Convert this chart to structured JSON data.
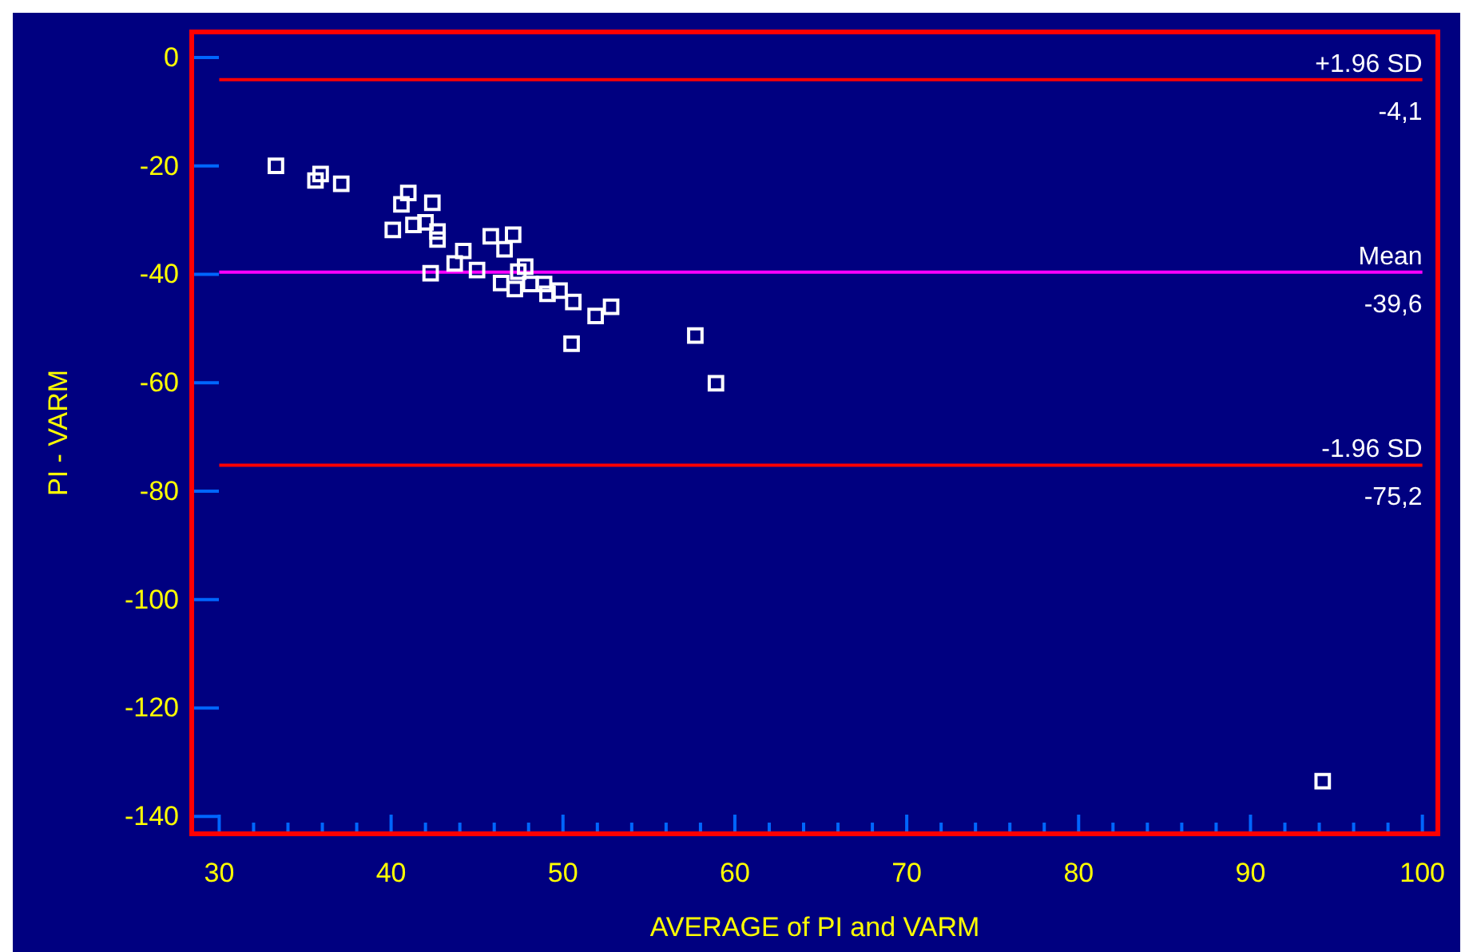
{
  "chart_data": {
    "type": "scatter",
    "xlabel": "AVERAGE of PI and VARM",
    "ylabel": "PI - VARM",
    "marker": "square",
    "grid": false,
    "xlim": [
      28.4,
      100.9
    ],
    "ylim": [
      -143.2,
      4.7
    ],
    "xticks": [
      30,
      {
        "value": 32,
        "label": null
      },
      {
        "value": 34,
        "label": null
      },
      {
        "value": 36,
        "label": null
      },
      {
        "value": 38,
        "label": null
      },
      40,
      {
        "value": 42,
        "label": null
      },
      {
        "value": 44,
        "label": null
      },
      {
        "value": 46,
        "label": null
      },
      {
        "value": 48,
        "label": null
      },
      50,
      {
        "value": 52,
        "label": null
      },
      {
        "value": 54,
        "label": null
      },
      {
        "value": 56,
        "label": null
      },
      {
        "value": 58,
        "label": null
      },
      60,
      {
        "value": 62,
        "label": null
      },
      {
        "value": 64,
        "label": null
      },
      {
        "value": 66,
        "label": null
      },
      {
        "value": 68,
        "label": null
      },
      70,
      {
        "value": 72,
        "label": null
      },
      {
        "value": 74,
        "label": null
      },
      {
        "value": 76,
        "label": null
      },
      {
        "value": 78,
        "label": null
      },
      80,
      {
        "value": 82,
        "label": null
      },
      {
        "value": 84,
        "label": null
      },
      {
        "value": 86,
        "label": null
      },
      {
        "value": 88,
        "label": null
      },
      90,
      {
        "value": 92,
        "label": null
      },
      {
        "value": 94,
        "label": null
      },
      {
        "value": 96,
        "label": null
      },
      {
        "value": 98,
        "label": null
      },
      100
    ],
    "yticks": [
      0,
      -20,
      -40,
      -60,
      -80,
      -100,
      -120,
      -140
    ],
    "series": [
      {
        "color": "#ffffff",
        "x": [
          33.3,
          35.6,
          35.9,
          37.1,
          40.6,
          41.0,
          40.1,
          42.4,
          41.3,
          42.0,
          42.7,
          42.7,
          44.2,
          43.7,
          42.3,
          45.0,
          45.8,
          47.1,
          46.6,
          47.8,
          47.4,
          46.4,
          47.2,
          48.1,
          48.9,
          49.1,
          49.8,
          50.6,
          52.8,
          51.9,
          50.5,
          57.7,
          58.9,
          94.2
        ],
        "values": [
          -20.0,
          -22.7,
          -21.5,
          -23.3,
          -27.1,
          -25.0,
          -31.8,
          -26.8,
          -30.9,
          -30.4,
          -32.1,
          -33.6,
          -35.7,
          -38.0,
          -39.8,
          -39.2,
          -33.0,
          -32.7,
          -35.4,
          -38.6,
          -39.5,
          -41.6,
          -42.7,
          -41.8,
          -41.8,
          -43.6,
          -43.0,
          -45.1,
          -46.0,
          -47.7,
          -52.8,
          -51.3,
          -60.1,
          -133.5
        ]
      }
    ],
    "ref_lines": [
      {
        "axis": "y",
        "value": -4.1,
        "label": "+1.96 SD",
        "color": "#ff0000"
      },
      {
        "axis": "y",
        "value": -39.6,
        "label": "Mean",
        "color": "#ff00ff"
      },
      {
        "axis": "y",
        "value": -75.2,
        "label": "-1.96 SD",
        "color": "#ff0000"
      }
    ],
    "annotations": [
      "-4,1",
      "-39,6",
      "-75,2"
    ]
  }
}
